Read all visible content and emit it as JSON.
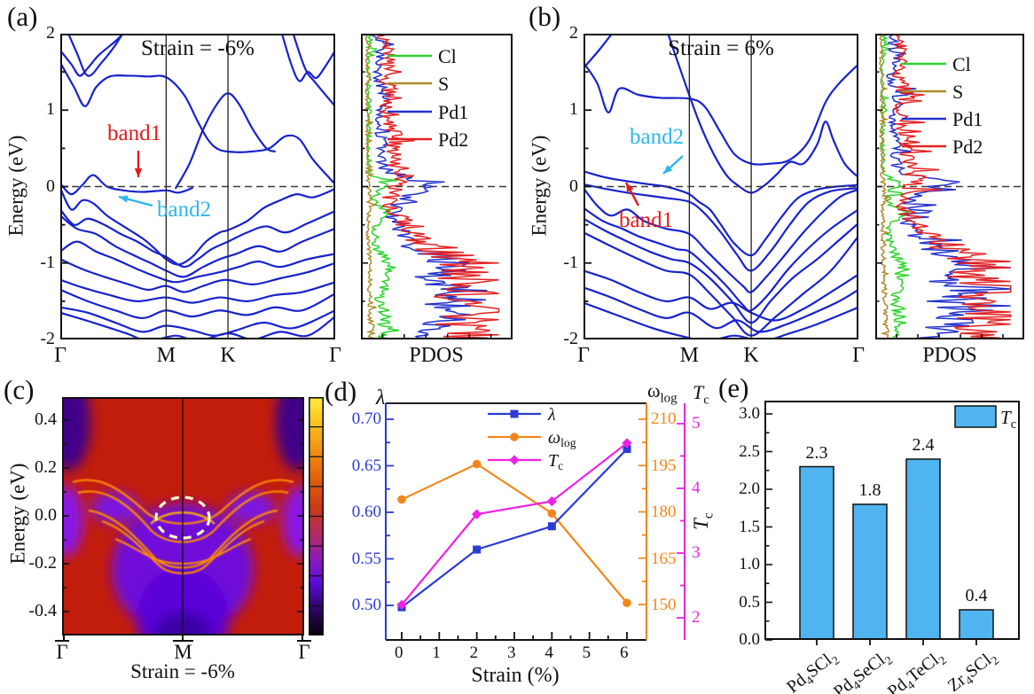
{
  "colors": {
    "band": "#1822CC",
    "annot_band1": "#E21B1B",
    "annot_band2": "#2FB6E9",
    "cl_green": "#2CD32C",
    "s_darkyellow": "#AE8B2A",
    "pd1_blue": "#2231CC",
    "pd2_red": "#E32222",
    "lambda_blue": "#2B3BD4",
    "omega_orange": "#F1871C",
    "tc_magenta": "#EE22E4",
    "bar_blue": "#4FB4F0",
    "axis_black": "#111111",
    "fermi_gray": "#3a3a3a",
    "heat_red": "#C21D0B",
    "heat_orange": "#FF8C00",
    "ellipse_cream": "#FFF6C8"
  },
  "panel_a": {
    "label": "(a)",
    "title": "Strain = -6%",
    "ylabel": "Energy (eV)",
    "yticks": [
      "2",
      "1",
      "0",
      "-1",
      "-2"
    ],
    "kticks": [
      "Γ",
      "M",
      "K",
      "Γ"
    ],
    "annotations": {
      "band1": "band1",
      "band2": "band2"
    },
    "pdos": {
      "xlabel": "PDOS",
      "legend": [
        "Cl",
        "S",
        "Pd1",
        "Pd2"
      ]
    }
  },
  "panel_b": {
    "label": "(b)",
    "title": "Strain = 6%",
    "ylabel": "Energy (eV)",
    "yticks": [
      "2",
      "1",
      "0",
      "-1",
      "-2"
    ],
    "kticks": [
      "Γ",
      "M",
      "K",
      "Γ"
    ],
    "annotations": {
      "band1": "band1",
      "band2": "band2"
    },
    "pdos": {
      "xlabel": "PDOS",
      "legend": [
        "Cl",
        "S",
        "Pd1",
        "Pd2"
      ]
    }
  },
  "panel_c": {
    "label": "(c)",
    "ylabel": "Energy (eV)",
    "yticks": [
      "0.4",
      "0.2",
      "0.0",
      "-0.2",
      "-0.4"
    ],
    "kticks": [
      "Γ",
      "M",
      "Γ"
    ],
    "overline": true,
    "caption": "Strain = -6%"
  },
  "panel_d": {
    "label": "(d)",
    "lambda_axis_label": "λ",
    "omega_axis_label": "ω_log",
    "tc_axis_label": "T_c",
    "xlabel": "Strain (%)",
    "xticks": [
      "0",
      "1",
      "2",
      "3",
      "4",
      "5",
      "6"
    ],
    "lambda_ticks": [
      "0.70",
      "0.65",
      "0.60",
      "0.55",
      "0.50"
    ],
    "omega_ticks": [
      "210",
      "195",
      "180",
      "165",
      "150"
    ],
    "tc_ticks": [
      "5",
      "4",
      "3",
      "2"
    ],
    "legend": [
      "λ",
      "ω_log",
      "T_c"
    ]
  },
  "panel_e": {
    "label": "(e)",
    "ylabel": "T_c",
    "yticks": [
      "3.0",
      "2.5",
      "2.0",
      "1.5",
      "1.0",
      "0.5",
      "0.0"
    ],
    "legend_label": "T_c",
    "categories": [
      "Pd4SCl2",
      "Pd4SeCl2",
      "Pd4TeCl2",
      "Zr4SCl2"
    ],
    "value_labels": [
      "2.3",
      "1.8",
      "2.4",
      "0.4"
    ]
  },
  "chart_data": [
    {
      "id": "a",
      "type": "line",
      "subtype": "electronic-band-structure",
      "title": "Strain = -6%",
      "kpath": [
        "Γ",
        "M",
        "K",
        "Γ"
      ],
      "ylabel": "Energy (eV)",
      "ylim": [
        -2,
        2
      ],
      "yticks": [
        2,
        1,
        0,
        -1,
        -2
      ],
      "fermi_energy": 0,
      "band_color": "blue",
      "annotations": [
        {
          "text": "band1",
          "color": "red",
          "points_to": "flat band just below E=0 between Γ and M"
        },
        {
          "text": "band2",
          "color": "cyan",
          "points_to": "band dispersing downward below band1"
        }
      ],
      "side_panel": {
        "xlabel": "PDOS",
        "legend": [
          {
            "label": "Cl",
            "color": "green"
          },
          {
            "label": "S",
            "color": "dark-yellow"
          },
          {
            "label": "Pd1",
            "color": "blue"
          },
          {
            "label": "Pd2",
            "color": "red"
          }
        ]
      }
    },
    {
      "id": "b",
      "type": "line",
      "subtype": "electronic-band-structure",
      "title": "Strain = 6%",
      "kpath": [
        "Γ",
        "M",
        "K",
        "Γ"
      ],
      "ylabel": "Energy (eV)",
      "ylim": [
        -2,
        2
      ],
      "yticks": [
        2,
        1,
        0,
        -1,
        -2
      ],
      "fermi_energy": 0,
      "band_color": "blue",
      "annotations": [
        {
          "text": "band2",
          "color": "cyan",
          "points_to": "band crossing E=0 near M"
        },
        {
          "text": "band1",
          "color": "red",
          "points_to": "band just below E=0 near M"
        }
      ],
      "side_panel": {
        "xlabel": "PDOS",
        "legend": [
          {
            "label": "Cl",
            "color": "green"
          },
          {
            "label": "S",
            "color": "dark-yellow"
          },
          {
            "label": "Pd1",
            "color": "blue"
          },
          {
            "label": "Pd2",
            "color": "red"
          }
        ]
      }
    },
    {
      "id": "c",
      "type": "heatmap",
      "subtype": "unfolded-band-structure",
      "kpath": [
        "Γ̄",
        "M̄",
        "Γ̄"
      ],
      "ylabel": "Energy (eV)",
      "ylim": [
        -0.5,
        0.5
      ],
      "yticks": [
        0.4,
        0.2,
        0.0,
        -0.2,
        -0.4
      ],
      "caption": "Strain = -6%",
      "colorbar": true,
      "colormap": "black → purple → red → orange → yellow",
      "annotation": "white-yellow dashed ellipse highlighting bands near M̄ at E≈0"
    },
    {
      "id": "d",
      "type": "line",
      "x": [
        0,
        2,
        4,
        6
      ],
      "xlabel": "Strain (%)",
      "xticks": [
        0,
        1,
        2,
        3,
        4,
        5,
        6
      ],
      "series": [
        {
          "name": "λ",
          "marker": "square",
          "color": "blue",
          "axis": "left",
          "values": [
            0.498,
            0.56,
            0.585,
            0.668
          ]
        },
        {
          "name": "ω_log",
          "marker": "circle",
          "color": "orange",
          "axis": "right-inner",
          "values": [
            184,
            195.5,
            179.5,
            150.5
          ]
        },
        {
          "name": "T_c",
          "marker": "diamond",
          "color": "magenta",
          "axis": "right-outer",
          "values": [
            2.2,
            3.6,
            3.8,
            4.7
          ]
        }
      ],
      "axes": {
        "left": {
          "label": "λ",
          "ticks": [
            0.7,
            0.65,
            0.6,
            0.55,
            0.5
          ],
          "range": [
            0.463,
            0.717
          ]
        },
        "right_inner": {
          "label": "ω_log",
          "ticks": [
            210,
            195,
            180,
            165,
            150
          ],
          "range": [
            138.5,
            215.5
          ]
        },
        "right_outer": {
          "label": "T_c",
          "ticks": [
            5,
            4,
            3,
            2
          ],
          "range": [
            1.66,
            5.33
          ]
        }
      },
      "legend_position": "top-center"
    },
    {
      "id": "e",
      "type": "bar",
      "categories": [
        "Pd4SCl2",
        "Pd4SeCl2",
        "Pd4TeCl2",
        "Zr4SCl2"
      ],
      "values": [
        2.3,
        1.8,
        2.4,
        0.4
      ],
      "bar_labels": [
        "2.3",
        "1.8",
        "2.4",
        "0.4"
      ],
      "ylabel": "T_c",
      "ylim": [
        0,
        3.2
      ],
      "yticks": [
        3.0,
        2.5,
        2.0,
        1.5,
        1.0,
        0.5,
        0.0
      ],
      "legend": [
        "T_c"
      ],
      "bar_color": "light-blue"
    }
  ]
}
